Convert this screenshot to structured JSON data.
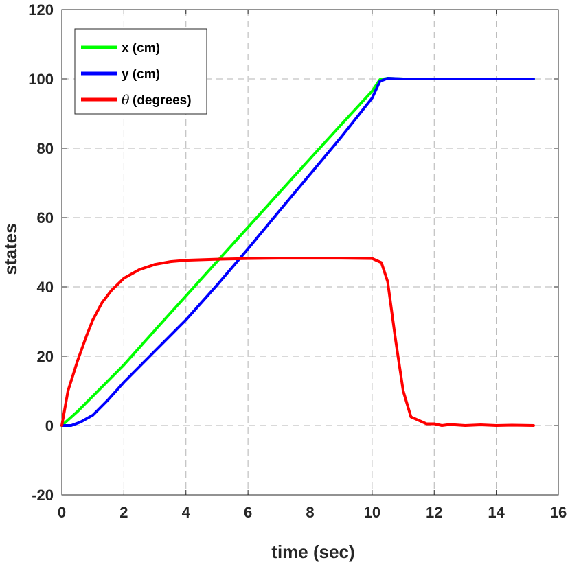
{
  "chart_data": {
    "type": "line",
    "title": "",
    "xlabel": "time (sec)",
    "ylabel": "states",
    "xlim": [
      0,
      16
    ],
    "ylim": [
      -20,
      120
    ],
    "xticks": [
      "0",
      "2",
      "4",
      "6",
      "8",
      "10",
      "12",
      "14",
      "16"
    ],
    "yticks": [
      "-20",
      "0",
      "20",
      "40",
      "60",
      "80",
      "100",
      "120"
    ],
    "grid": true,
    "legend_position": "top-left",
    "series": [
      {
        "name": "x (cm)",
        "color": "#00ff00",
        "x": [
          0,
          0.5,
          1,
          1.5,
          2,
          3,
          4,
          5,
          6,
          7,
          8,
          9,
          10,
          10.25,
          10.5,
          11,
          12,
          13,
          14,
          15.2
        ],
        "y": [
          0,
          4,
          8.5,
          13,
          17.5,
          27.5,
          37.4,
          47.3,
          57.2,
          67.1,
          77,
          86.8,
          96.5,
          99.8,
          100.2,
          100,
          100,
          100,
          100,
          100
        ]
      },
      {
        "name": "y (cm)",
        "color": "#0000ff",
        "x": [
          0,
          0.3,
          0.6,
          1,
          1.5,
          2,
          3,
          4,
          5,
          6,
          7,
          8,
          9,
          10,
          10.25,
          10.5,
          11,
          12,
          13,
          14,
          15.2
        ],
        "y": [
          0,
          0,
          1,
          3,
          7.5,
          12.5,
          21.5,
          30.5,
          40.5,
          51,
          61.8,
          72.5,
          83.2,
          94.5,
          99.3,
          100.2,
          100,
          100,
          100,
          100,
          100
        ]
      },
      {
        "name": "(degrees)",
        "symbol": "θ",
        "color": "#ff0000",
        "x": [
          0,
          0.2,
          0.5,
          0.8,
          1,
          1.3,
          1.6,
          2,
          2.5,
          3,
          3.5,
          4,
          5,
          6,
          7,
          8,
          9,
          10,
          10.3,
          10.5,
          10.75,
          11,
          11.25,
          11.5,
          11.75,
          12,
          12.25,
          12.5,
          13,
          13.5,
          14,
          14.5,
          15.2
        ],
        "y": [
          0,
          10,
          18.5,
          26,
          30.5,
          35.5,
          39,
          42.5,
          45,
          46.5,
          47.3,
          47.7,
          48,
          48.2,
          48.3,
          48.3,
          48.3,
          48.2,
          47,
          41.5,
          25,
          10,
          2.5,
          1.5,
          0.5,
          0.5,
          0,
          0.3,
          0,
          0.2,
          0,
          0.1,
          0
        ]
      }
    ]
  }
}
